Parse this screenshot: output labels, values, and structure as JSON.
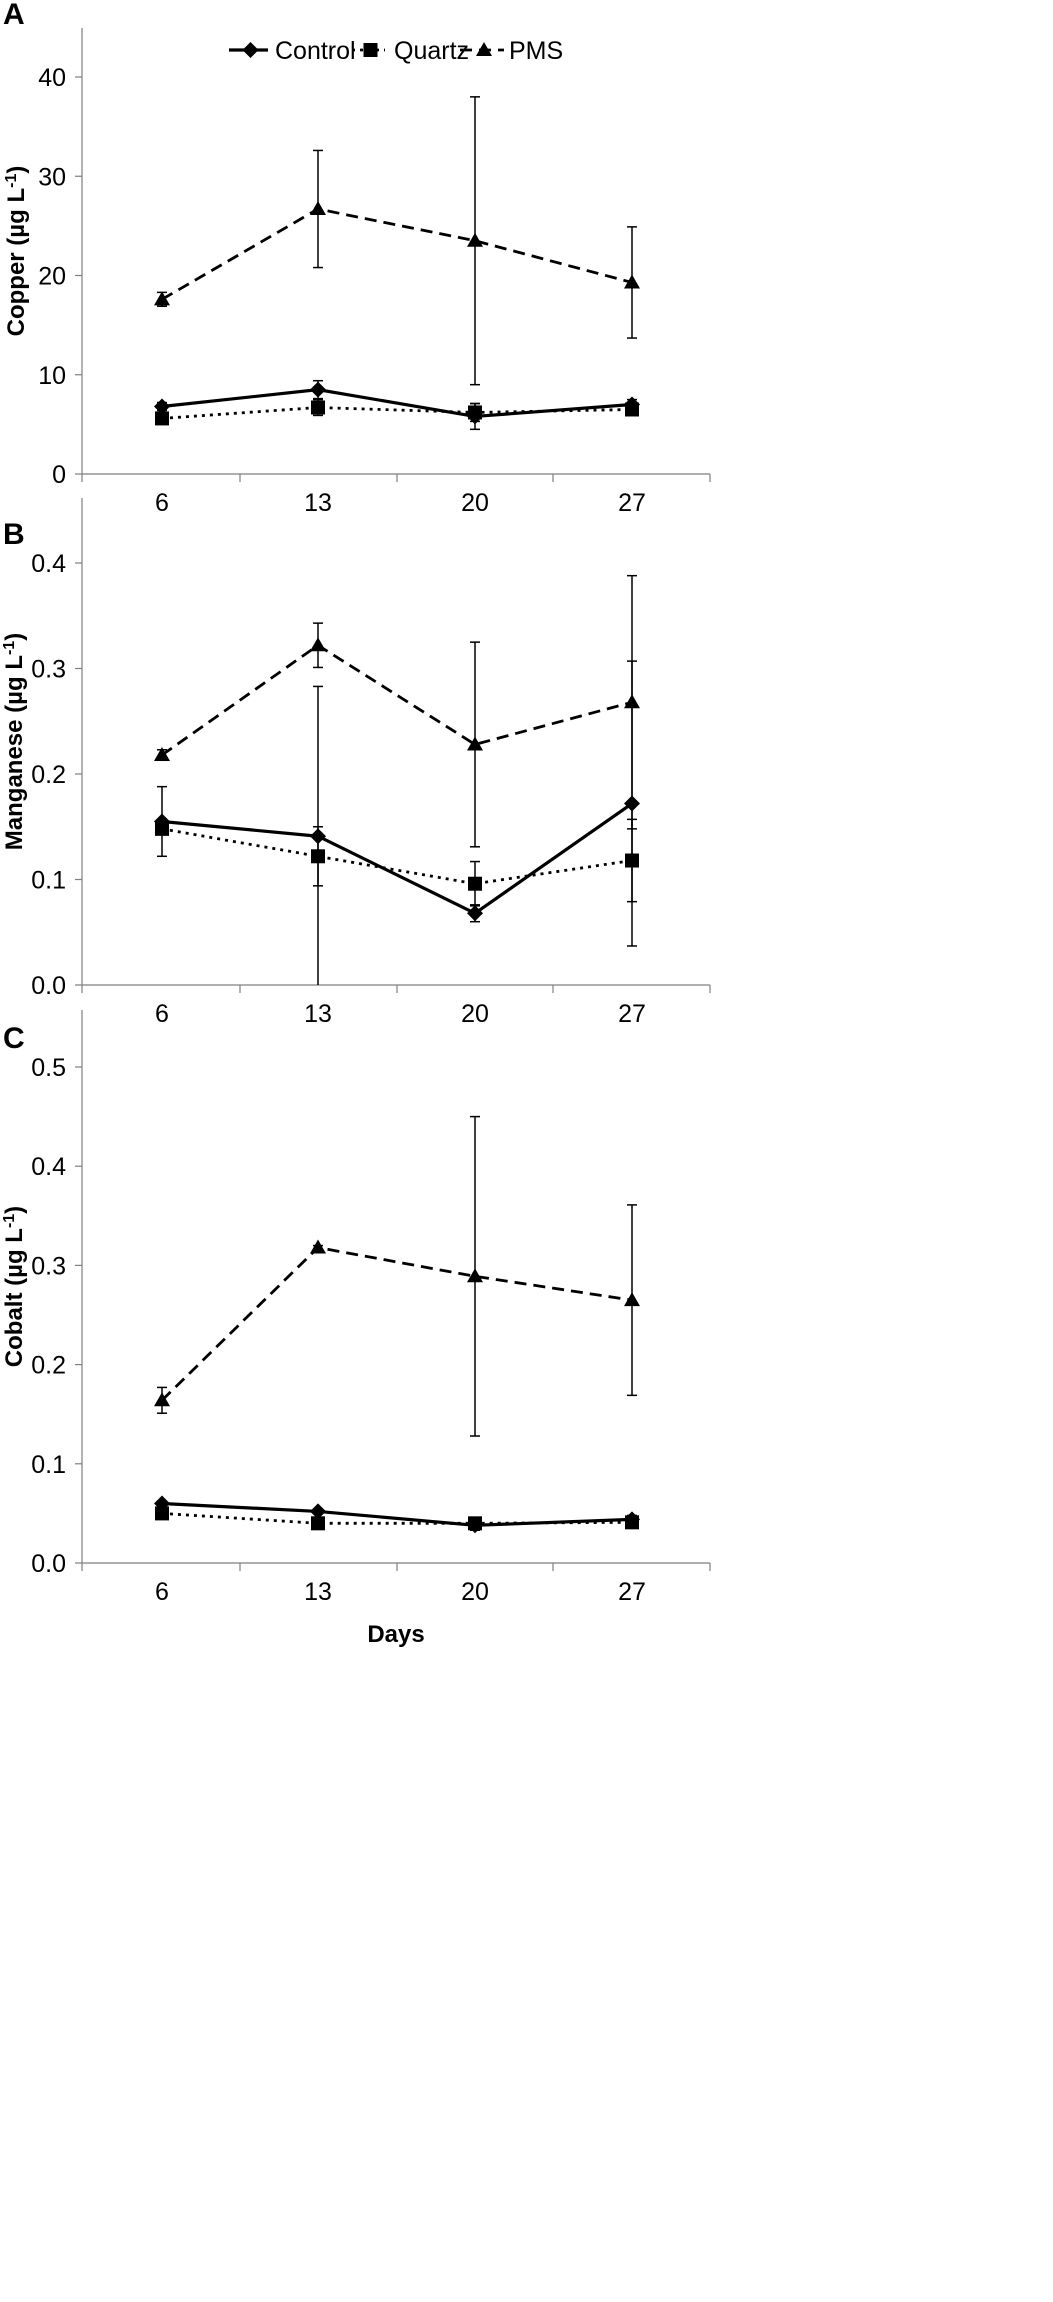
{
  "chart_data": [
    {
      "type": "line",
      "panel_label": "A",
      "xlabel": "",
      "ylabel": "Copper (µg L",
      "ylabel_sup": "-1",
      "ylabel_close": ")",
      "categories": [
        "6",
        "13",
        "20",
        "27"
      ],
      "ylim": [
        0,
        45
      ],
      "yticks": [
        0,
        10,
        20,
        30,
        40
      ],
      "ytick_labels": [
        "0",
        "10",
        "20",
        "30",
        "40"
      ],
      "legend": {
        "position": "top",
        "entries": [
          "Control",
          "Quartz",
          "PMS"
        ]
      },
      "series": [
        {
          "name": "Control",
          "marker": "diamond",
          "line": "solid",
          "values": [
            6.8,
            8.5,
            5.8,
            7.0
          ],
          "errors": [
            0.4,
            0.9,
            1.3,
            0.5
          ]
        },
        {
          "name": "Quartz",
          "marker": "square",
          "line": "dotted",
          "values": [
            5.6,
            6.7,
            6.2,
            6.5
          ],
          "errors": [
            0.3,
            0.8,
            0.9,
            0.4
          ]
        },
        {
          "name": "PMS",
          "marker": "triangle",
          "line": "dashed",
          "values": [
            17.6,
            26.7,
            23.5,
            19.3
          ],
          "errors": [
            0.7,
            5.9,
            14.5,
            5.6
          ]
        }
      ]
    },
    {
      "type": "line",
      "panel_label": "B",
      "xlabel": "",
      "ylabel": "Manganese (µg L",
      "ylabel_sup": "-1",
      "ylabel_close": ")",
      "categories": [
        "6",
        "13",
        "20",
        "27"
      ],
      "ylim": [
        0,
        0.4
      ],
      "yticks": [
        0,
        0.1,
        0.2,
        0.3,
        0.4
      ],
      "ytick_labels": [
        "0.0",
        "0.1",
        "0.2",
        "0.3",
        "0.4"
      ],
      "series": [
        {
          "name": "Control",
          "marker": "diamond",
          "line": "solid",
          "values": [
            0.155,
            0.141,
            0.068,
            0.172
          ],
          "errors": [
            0.033,
            0.142,
            0.008,
            0.135
          ]
        },
        {
          "name": "Quartz",
          "marker": "square",
          "line": "dotted",
          "values": [
            0.148,
            0.122,
            0.096,
            0.118
          ],
          "errors": [
            0.005,
            0.028,
            0.021,
            0.039
          ]
        },
        {
          "name": "PMS",
          "marker": "triangle",
          "line": "dashed",
          "values": [
            0.218,
            0.322,
            0.228,
            0.268
          ],
          "errors": [
            0.005,
            0.021,
            0.097,
            0.12
          ]
        }
      ]
    },
    {
      "type": "line",
      "panel_label": "C",
      "xlabel": "Days",
      "ylabel": "Cobalt (µg L",
      "ylabel_sup": "-1",
      "ylabel_close": ")",
      "categories": [
        "6",
        "13",
        "20",
        "27"
      ],
      "ylim": [
        0,
        0.5
      ],
      "yticks": [
        0,
        0.1,
        0.2,
        0.3,
        0.4,
        0.5
      ],
      "ytick_labels": [
        "0.0",
        "0.1",
        "0.2",
        "0.3",
        "0.4",
        "0.5"
      ],
      "series": [
        {
          "name": "Control",
          "marker": "diamond",
          "line": "solid",
          "values": [
            0.06,
            0.052,
            0.038,
            0.044
          ],
          "errors": [
            0.002,
            0.002,
            0.005,
            0.004
          ]
        },
        {
          "name": "Quartz",
          "marker": "square",
          "line": "dotted",
          "values": [
            0.05,
            0.04,
            0.04,
            0.041
          ],
          "errors": [
            0.002,
            0.002,
            0.003,
            0.003
          ]
        },
        {
          "name": "PMS",
          "marker": "triangle",
          "line": "dashed",
          "values": [
            0.164,
            0.318,
            0.289,
            0.265
          ],
          "errors": [
            0.013,
            0.002,
            0.161,
            0.096
          ]
        }
      ]
    }
  ]
}
